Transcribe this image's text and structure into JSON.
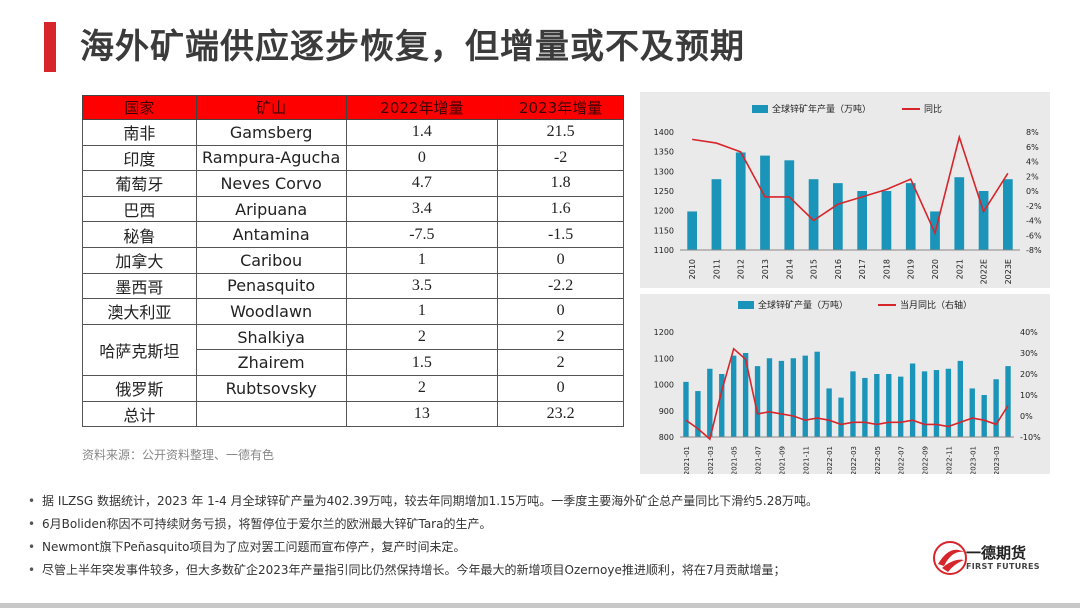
{
  "title": "海外矿端供应逐步恢复，但增量或不及预期",
  "table": {
    "headers": [
      "国家",
      "矿山",
      "2022年增量",
      "2023年增量"
    ],
    "rows": [
      {
        "country": "南非",
        "mine": "Gamsberg",
        "y2022": "1.4",
        "y2023": "21.5"
      },
      {
        "country": "印度",
        "mine": "Rampura-Agucha",
        "y2022": "0",
        "y2023": "-2"
      },
      {
        "country": "葡萄牙",
        "mine": "Neves Corvo",
        "y2022": "4.7",
        "y2023": "1.8"
      },
      {
        "country": "巴西",
        "mine": "Aripuana",
        "y2022": "3.4",
        "y2023": "1.6"
      },
      {
        "country": "秘鲁",
        "mine": "Antamina",
        "y2022": "-7.5",
        "y2023": "-1.5"
      },
      {
        "country": "加拿大",
        "mine": "Caribou",
        "y2022": "1",
        "y2023": "0"
      },
      {
        "country": "墨西哥",
        "mine": "Penasquito",
        "y2022": "3.5",
        "y2023": "-2.2"
      },
      {
        "country": "澳大利亚",
        "mine": "Woodlawn",
        "y2022": "1",
        "y2023": "0"
      },
      {
        "country": "哈萨克斯坦",
        "mine": "Shalkiya",
        "y2022": "2",
        "y2023": "2"
      },
      {
        "country": "",
        "mine": "Zhairem",
        "y2022": "1.5",
        "y2023": "2"
      },
      {
        "country": "俄罗斯",
        "mine": "Rubtsovsky",
        "y2022": "2",
        "y2023": "0"
      },
      {
        "country": "总计",
        "mine": "",
        "y2022": "13",
        "y2023": "23.2"
      }
    ]
  },
  "source": "资料来源：公开资料整理、一德有色",
  "chart_data": [
    {
      "type": "bar",
      "legend": [
        "全球锌矿年产量（万吨）",
        "同比"
      ],
      "categories": [
        "2010",
        "2011",
        "2012",
        "2013",
        "2014",
        "2015",
        "2016",
        "2017",
        "2018",
        "2019",
        "2020",
        "2021",
        "2022E",
        "2023E"
      ],
      "series": [
        {
          "name": "全球锌矿年产量（万吨）",
          "type": "bar",
          "axis": "left",
          "values": [
            1198,
            1280,
            1348,
            1340,
            1328,
            1280,
            1270,
            1250,
            1250,
            1270,
            1198,
            1285,
            1250,
            1280
          ]
        },
        {
          "name": "同比",
          "type": "line",
          "axis": "right",
          "values": [
            7,
            6.5,
            5.3,
            -0.8,
            -0.8,
            -4.0,
            -1.8,
            -0.8,
            0.2,
            1.6,
            -5.7,
            7.3,
            -2.8,
            2.4
          ]
        }
      ],
      "ylim_left": [
        1100,
        1400
      ],
      "yticks_left": [
        1100,
        1150,
        1200,
        1250,
        1300,
        1350,
        1400
      ],
      "ylim_right": [
        -8,
        8
      ],
      "yticks_right": [
        "-8%",
        "-6%",
        "-4%",
        "-2%",
        "0%",
        "2%",
        "4%",
        "6%",
        "8%"
      ],
      "color_bar": "#1a94b8",
      "color_line": "#d7262b"
    },
    {
      "type": "bar",
      "legend": [
        "全球锌矿产量（万吨）",
        "当月同比（右轴）"
      ],
      "x_tick_labels": [
        "2021-01",
        "2021-03",
        "2021-05",
        "2021-07",
        "2021-09",
        "2021-11",
        "2022-01",
        "2022-03",
        "2022-05",
        "2022-07",
        "2022-09",
        "2022-11",
        "2023-01",
        "2023-03"
      ],
      "series": [
        {
          "name": "全球锌矿产量（万吨）",
          "type": "bar",
          "axis": "left",
          "values": [
            1010,
            975,
            1060,
            1040,
            1110,
            1120,
            1070,
            1100,
            1090,
            1100,
            1110,
            1125,
            985,
            950,
            1050,
            1025,
            1040,
            1040,
            1030,
            1080,
            1050,
            1055,
            1060,
            1090,
            985,
            960,
            1020,
            1070
          ]
        },
        {
          "name": "当月同比（右轴）",
          "type": "line",
          "axis": "right",
          "values": [
            -2,
            -6,
            -11,
            12,
            32,
            27,
            1,
            2,
            1,
            0,
            -2,
            -1,
            -2,
            -4,
            -3,
            -3,
            -4,
            -3,
            -3,
            -2,
            -4,
            -4,
            -5,
            -3,
            -1,
            -2,
            -4,
            5
          ]
        }
      ],
      "ylim_left": [
        800,
        1200
      ],
      "yticks_left": [
        800,
        900,
        1000,
        1100,
        1200
      ],
      "ylim_right": [
        -10,
        40
      ],
      "yticks_right": [
        "-10%",
        "0%",
        "10%",
        "20%",
        "30%",
        "40%"
      ],
      "color_bar": "#1a94b8",
      "color_line": "#d7262b"
    }
  ],
  "bullets": [
    "据 ILZSG 数据统计，2023 年 1-4 月全球锌矿产量为402.39万吨，较去年同期增加1.15万吨。一季度主要海外矿企总产量同比下滑约5.28万吨。",
    "6月Boliden称因不可持续财务亏损，将暂停位于爱尔兰的欧洲最大锌矿Tara的生产。",
    "Newmont旗下Peñasquito项目为了应对罢工问题而宣布停产，复产时间未定。",
    "尽管上半年突发事件较多，但大多数矿企2023年产量指引同比仍然保持增长。今年最大的新增项目Ozernoye推进顺利，将在7月贡献增量；"
  ],
  "logo": {
    "name": "一德期货",
    "sub": "FIRST FUTURES"
  },
  "colors": {
    "accent": "#d7262b",
    "header_fill": "#ff0000",
    "bar": "#1a94b8"
  }
}
